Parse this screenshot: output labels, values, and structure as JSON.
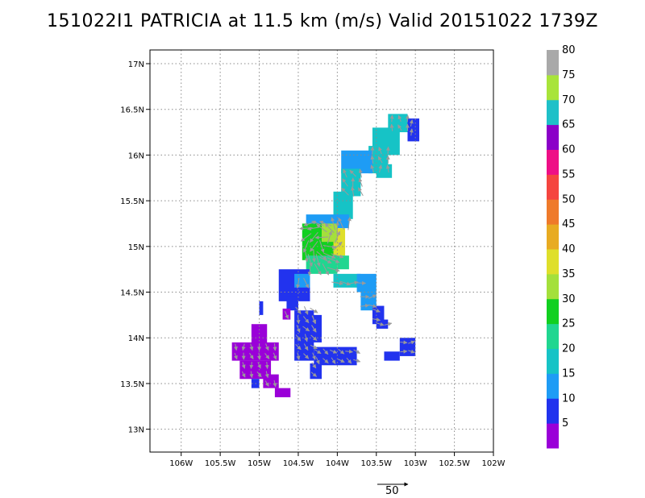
{
  "chart_data": {
    "type": "heatmap",
    "title": "151022I1 PATRICIA at 11.5 km (m/s) Valid 20151022 1739Z",
    "x_axis": {
      "ticks": [
        "106W",
        "105.5W",
        "105W",
        "104.5W",
        "104W",
        "103.5W",
        "103W",
        "102.5W",
        "102W"
      ],
      "xlim": [
        -106.4,
        -102.0
      ]
    },
    "y_axis": {
      "ticks": [
        "13N",
        "13.5N",
        "14N",
        "14.5N",
        "15N",
        "15.5N",
        "16N",
        "16.5N",
        "17N"
      ],
      "ylim": [
        12.75,
        17.15
      ]
    },
    "grid": true,
    "colorbar": {
      "labels": [
        "5",
        "10",
        "15",
        "20",
        "25",
        "30",
        "35",
        "40",
        "45",
        "50",
        "55",
        "60",
        "65",
        "70",
        "75",
        "80"
      ],
      "colors": [
        "#9a00d8",
        "#2233ee",
        "#1e9cf5",
        "#16c3c6",
        "#20d690",
        "#11d020",
        "#a4e03b",
        "#dfdf2a",
        "#e8ab22",
        "#ef7a2a",
        "#f5453f",
        "#ee0f86",
        "#8b00c8",
        "#1ec0c8",
        "#a8e43a",
        "#a9a9a9"
      ],
      "placement": "right"
    },
    "vector_scale": {
      "label": "50"
    },
    "blocks": [
      {
        "lon0": -103.35,
        "lon1": -103.1,
        "lat0": 16.25,
        "lat1": 16.45,
        "value": 20
      },
      {
        "lon0": -103.1,
        "lon1": -102.95,
        "lat0": 16.2,
        "lat1": 16.4,
        "value": 10
      },
      {
        "lon0": -103.1,
        "lon1": -102.95,
        "lat0": 16.15,
        "lat1": 16.25,
        "value": 10
      },
      {
        "lon0": -103.55,
        "lon1": -103.2,
        "lat0": 16.0,
        "lat1": 16.3,
        "value": 20
      },
      {
        "lon0": -103.6,
        "lon1": -103.35,
        "lat0": 15.8,
        "lat1": 16.1,
        "value": 20
      },
      {
        "lon0": -103.5,
        "lon1": -103.3,
        "lat0": 15.75,
        "lat1": 15.9,
        "value": 20
      },
      {
        "lon0": -103.95,
        "lon1": -103.55,
        "lat0": 15.8,
        "lat1": 16.05,
        "value": 15
      },
      {
        "lon0": -103.95,
        "lon1": -103.7,
        "lat0": 15.55,
        "lat1": 15.85,
        "value": 20
      },
      {
        "lon0": -104.05,
        "lon1": -103.8,
        "lat0": 15.3,
        "lat1": 15.6,
        "value": 20
      },
      {
        "lon0": -104.4,
        "lon1": -103.85,
        "lat0": 15.2,
        "lat1": 15.35,
        "value": 15
      },
      {
        "lon0": -104.45,
        "lon1": -104.0,
        "lat0": 14.85,
        "lat1": 15.25,
        "value": 30
      },
      {
        "lon0": -104.05,
        "lon1": -103.9,
        "lat0": 14.9,
        "lat1": 15.2,
        "value": 40
      },
      {
        "lon0": -104.2,
        "lon1": -104.0,
        "lat0": 15.05,
        "lat1": 15.25,
        "value": 35
      },
      {
        "lon0": -104.4,
        "lon1": -104.0,
        "lat0": 14.7,
        "lat1": 14.9,
        "value": 25
      },
      {
        "lon0": -104.0,
        "lon1": -103.85,
        "lat0": 14.75,
        "lat1": 14.9,
        "value": 25
      },
      {
        "lon0": -104.75,
        "lon1": -104.35,
        "lat0": 14.4,
        "lat1": 14.75,
        "value": 10
      },
      {
        "lon0": -104.55,
        "lon1": -104.35,
        "lat0": 14.55,
        "lat1": 14.7,
        "value": 15
      },
      {
        "lon0": -104.65,
        "lon1": -104.5,
        "lat0": 14.3,
        "lat1": 14.45,
        "value": 10
      },
      {
        "lon0": -104.7,
        "lon1": -104.6,
        "lat0": 14.2,
        "lat1": 14.32,
        "value": 5
      },
      {
        "lon0": -104.55,
        "lon1": -104.3,
        "lat0": 13.75,
        "lat1": 14.3,
        "value": 10
      },
      {
        "lon0": -104.35,
        "lon1": -104.2,
        "lat0": 13.95,
        "lat1": 14.25,
        "value": 10
      },
      {
        "lon0": -104.3,
        "lon1": -103.75,
        "lat0": 13.7,
        "lat1": 13.9,
        "value": 10
      },
      {
        "lon0": -104.35,
        "lon1": -104.2,
        "lat0": 13.55,
        "lat1": 13.72,
        "value": 10
      },
      {
        "lon0": -104.05,
        "lon1": -103.7,
        "lat0": 14.55,
        "lat1": 14.7,
        "value": 20
      },
      {
        "lon0": -103.75,
        "lon1": -103.5,
        "lat0": 14.5,
        "lat1": 14.7,
        "value": 15
      },
      {
        "lon0": -103.7,
        "lon1": -103.5,
        "lat0": 14.3,
        "lat1": 14.5,
        "value": 15
      },
      {
        "lon0": -103.55,
        "lon1": -103.4,
        "lat0": 14.15,
        "lat1": 14.35,
        "value": 10
      },
      {
        "lon0": -103.5,
        "lon1": -103.35,
        "lat0": 14.1,
        "lat1": 14.2,
        "value": 10
      },
      {
        "lon0": -103.4,
        "lon1": -103.2,
        "lat0": 13.75,
        "lat1": 13.85,
        "value": 10
      },
      {
        "lon0": -103.2,
        "lon1": -103.0,
        "lat0": 13.8,
        "lat1": 14.0,
        "value": 10
      },
      {
        "lon0": -105.0,
        "lon1": -104.95,
        "lat0": 14.25,
        "lat1": 14.4,
        "value": 10
      },
      {
        "lon0": -105.1,
        "lon1": -104.9,
        "lat0": 13.85,
        "lat1": 14.15,
        "value": 5
      },
      {
        "lon0": -105.35,
        "lon1": -104.75,
        "lat0": 13.75,
        "lat1": 13.95,
        "value": 5
      },
      {
        "lon0": -105.25,
        "lon1": -104.85,
        "lat0": 13.55,
        "lat1": 13.75,
        "value": 5
      },
      {
        "lon0": -104.95,
        "lon1": -104.75,
        "lat0": 13.45,
        "lat1": 13.6,
        "value": 5
      },
      {
        "lon0": -104.8,
        "lon1": -104.6,
        "lat0": 13.35,
        "lat1": 13.45,
        "value": 5
      },
      {
        "lon0": -105.1,
        "lon1": -105.0,
        "lat0": 13.45,
        "lat1": 13.55,
        "value": 10
      }
    ]
  }
}
